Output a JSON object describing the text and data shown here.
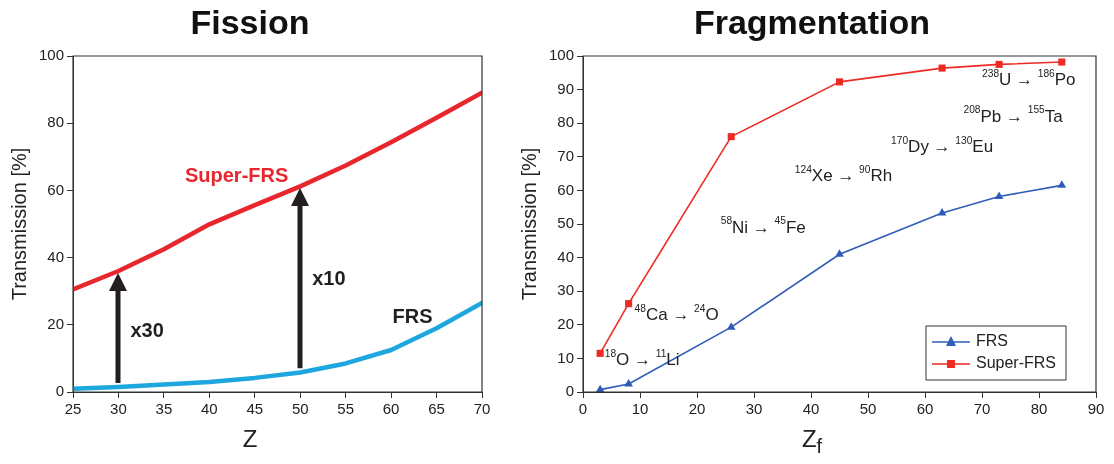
{
  "chart_data": [
    {
      "type": "line",
      "title": "Fission",
      "xlabel": "Z",
      "ylabel": "Transmission [%]",
      "xlim": [
        25,
        70
      ],
      "ylim": [
        0,
        100
      ],
      "xticks": [
        25,
        30,
        35,
        40,
        45,
        50,
        55,
        60,
        65,
        70
      ],
      "yticks": [
        0,
        20,
        40,
        60,
        80,
        100
      ],
      "grid": false,
      "legend": false,
      "marker": "none",
      "line_style": "solid",
      "x": [
        25,
        30,
        35,
        40,
        45,
        50,
        55,
        60,
        65,
        70
      ],
      "series": [
        {
          "name": "Super-FRS",
          "color": "#e8262d",
          "values": [
            30.5,
            36,
            42.5,
            49.9,
            55.6,
            61.2,
            67.4,
            74.3,
            81.6,
            89.1
          ]
        },
        {
          "name": "FRS",
          "color": "#1ea6df",
          "values": [
            1,
            1.5,
            2.2,
            3,
            4.2,
            5.8,
            8.5,
            12.5,
            19,
            26.5
          ]
        }
      ],
      "annotations": [
        "x30",
        "x10"
      ]
    },
    {
      "type": "line",
      "title": "Fragmentation",
      "xlabel": "Z$_{f}$",
      "ylabel": "Transmission [%]",
      "xlim": [
        0,
        90
      ],
      "ylim": [
        0,
        100
      ],
      "xticks": [
        0,
        10,
        20,
        30,
        40,
        50,
        60,
        70,
        80,
        90
      ],
      "yticks": [
        0,
        10,
        20,
        30,
        40,
        50,
        60,
        70,
        80,
        90,
        100
      ],
      "grid": false,
      "legend": "bottom right",
      "line_style": "solid",
      "x": [
        3,
        8,
        26,
        45,
        63,
        73,
        84
      ],
      "series": [
        {
          "name": "FRS",
          "color": "#2f5cb8",
          "marker": "triangle",
          "values": [
            0.7,
            2.4,
            19.3,
            41,
            53.3,
            58.2,
            61.5
          ]
        },
        {
          "name": "Super-FRS",
          "color": "#ee2a24",
          "marker": "square",
          "values": [
            11.5,
            26.3,
            76,
            92.3,
            96.4,
            97.5,
            98.2
          ]
        }
      ],
      "annotations": [
        "$^{18}$O → $^{11}$Li",
        "$^{48}$Ca → $^{24}$O",
        "$^{58}$Ni → $^{45}$Fe",
        "$^{124}$Xe → $^{90}$Rh",
        "$^{170}$Dy → $^{130}$Eu",
        "$^{208}$Pb → $^{155}$Ta",
        "$^{238}$U → $^{186}$Po"
      ]
    }
  ]
}
